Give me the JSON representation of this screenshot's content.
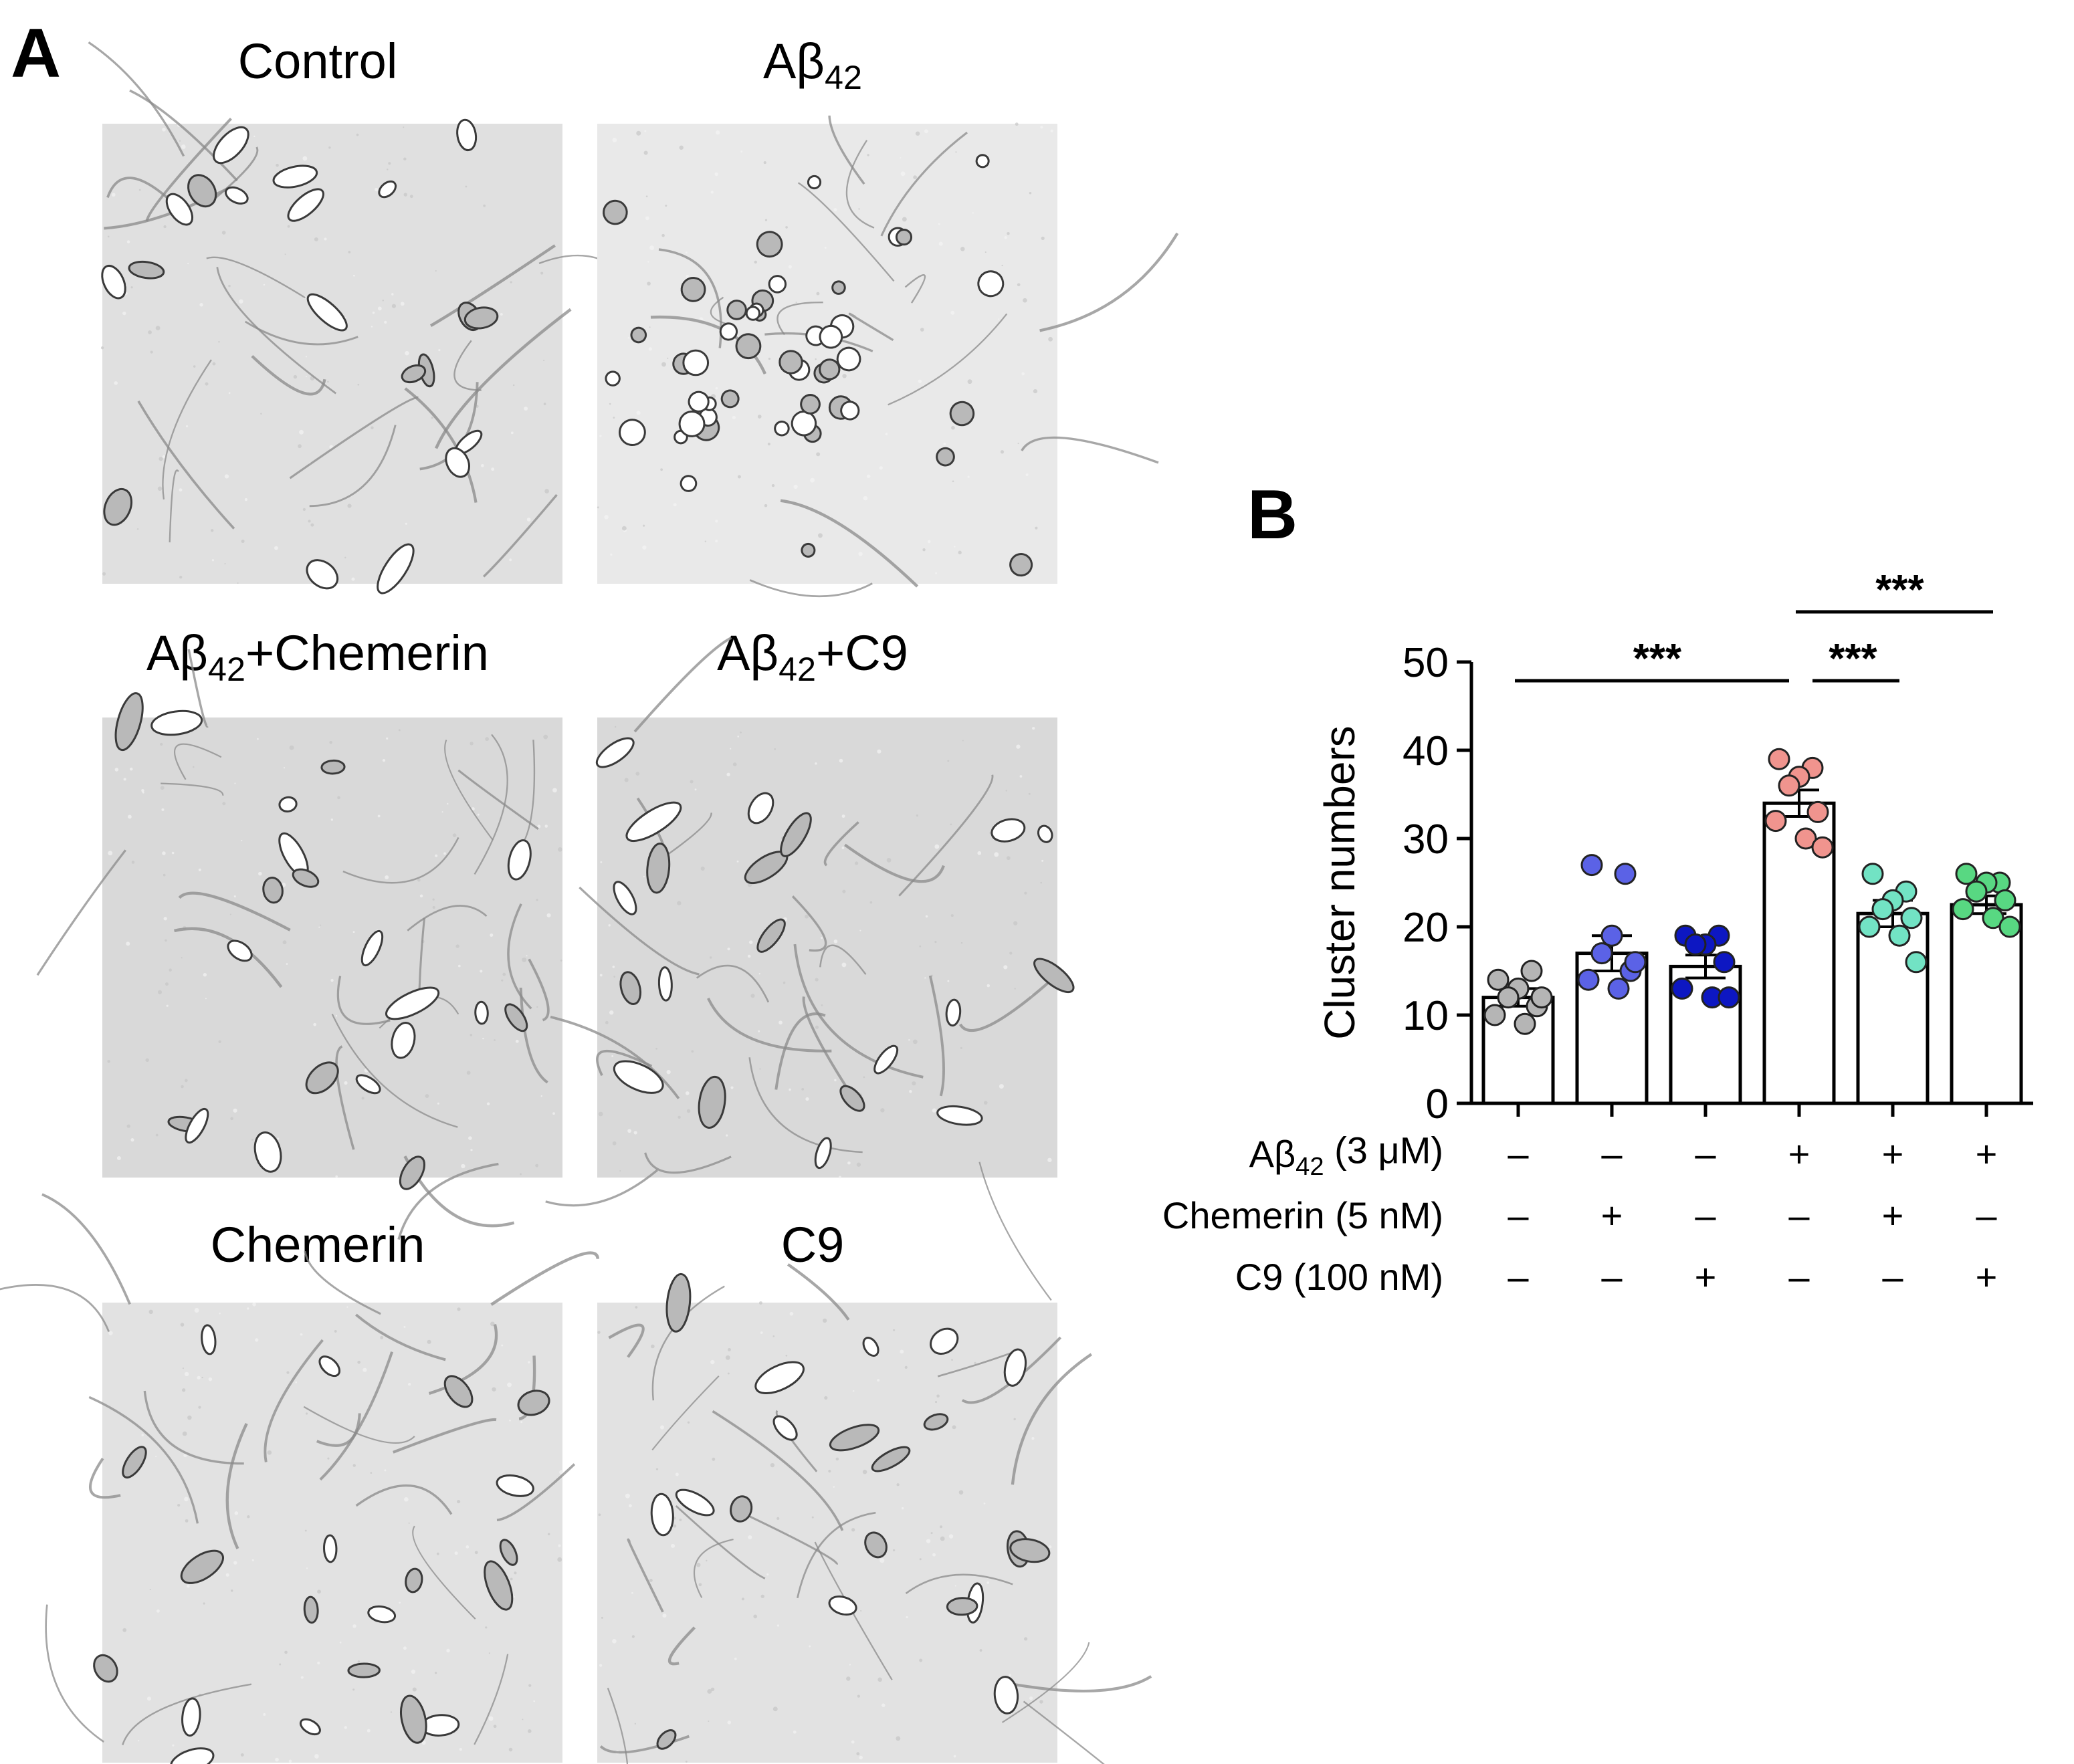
{
  "panel_a": {
    "letter": "A",
    "images": [
      {
        "id": "control",
        "title": "Control",
        "title_sub": "",
        "title_after": "",
        "tone": "#e0e0e0",
        "cell_pattern": "spindle"
      },
      {
        "id": "abeta42",
        "title": "Aβ",
        "title_sub": "42",
        "title_after": "",
        "tone": "#e9e9e9",
        "cell_pattern": "cluster"
      },
      {
        "id": "abeta42-chemerin",
        "title": "Aβ",
        "title_sub": "42",
        "title_after": "+Chemerin",
        "tone": "#d9d9d9",
        "cell_pattern": "spindle"
      },
      {
        "id": "abeta42-c9",
        "title": "Aβ",
        "title_sub": "42",
        "title_after": "+C9",
        "tone": "#d9d9d9",
        "cell_pattern": "spindle"
      },
      {
        "id": "chemerin",
        "title": "Chemerin",
        "title_sub": "",
        "title_after": "",
        "tone": "#e2e2e2",
        "cell_pattern": "spindle"
      },
      {
        "id": "c9",
        "title": "C9",
        "title_sub": "",
        "title_after": "",
        "tone": "#e2e2e2",
        "cell_pattern": "spindle"
      }
    ]
  },
  "panel_b": {
    "letter": "B",
    "chart_data": {
      "type": "bar",
      "ylabel": "Cluster numbers",
      "ylim": [
        0,
        50
      ],
      "yticks": [
        "0",
        "10",
        "20",
        "30",
        "40",
        "50"
      ],
      "categories": [
        "1",
        "2",
        "3",
        "4",
        "5",
        "6"
      ],
      "values": [
        12,
        17,
        15.5,
        34,
        21.5,
        22.5
      ],
      "sem": [
        1.0,
        2.0,
        1.3,
        1.5,
        1.5,
        1.0
      ],
      "point_colors": [
        "#b5b5b5",
        "#5b62e6",
        "#0d17c2",
        "#f0948e",
        "#72e3c4",
        "#58d882"
      ],
      "points": [
        [
          14,
          15,
          13,
          12,
          11,
          10,
          9,
          12
        ],
        [
          27,
          26,
          19,
          17,
          15,
          14,
          13,
          16
        ],
        [
          19,
          19,
          18,
          18,
          16,
          13,
          12,
          12
        ],
        [
          39,
          38,
          37,
          36,
          33,
          32,
          30,
          29
        ],
        [
          26,
          24,
          23,
          22,
          21,
          20,
          19,
          16
        ],
        [
          26,
          25,
          25,
          24,
          23,
          22,
          21,
          20
        ]
      ],
      "significance": [
        {
          "from": 1,
          "to": 4,
          "label": "***"
        },
        {
          "from": 4,
          "to": 5,
          "label": "***"
        },
        {
          "from": 4,
          "to": 6,
          "label": "***"
        }
      ],
      "conditions": [
        {
          "label": "Aβ",
          "label_sub": "42",
          "label_after": " (3 μM)",
          "signs": [
            "–",
            "–",
            "–",
            "+",
            "+",
            "+"
          ]
        },
        {
          "label": "Chemerin (5 nM)",
          "label_sub": "",
          "label_after": "",
          "signs": [
            "–",
            "+",
            "–",
            "–",
            "+",
            "–"
          ]
        },
        {
          "label": "C9 (100 nM)",
          "label_sub": "",
          "label_after": "",
          "signs": [
            "–",
            "–",
            "+",
            "–",
            "–",
            "+"
          ]
        }
      ]
    }
  }
}
